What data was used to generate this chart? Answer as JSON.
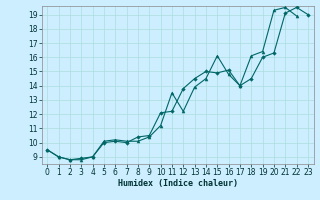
{
  "title": "",
  "xlabel": "Humidex (Indice chaleur)",
  "bg_color": "#cceeff",
  "grid_color": "#aadddd",
  "line_color1": "#006666",
  "line_color2": "#006666",
  "xlim": [
    -0.5,
    23.5
  ],
  "ylim": [
    8.5,
    19.6
  ],
  "xticks": [
    0,
    1,
    2,
    3,
    4,
    5,
    6,
    7,
    8,
    9,
    10,
    11,
    12,
    13,
    14,
    15,
    16,
    17,
    18,
    19,
    20,
    21,
    22,
    23
  ],
  "yticks": [
    9,
    10,
    11,
    12,
    13,
    14,
    15,
    16,
    17,
    18,
    19
  ],
  "series1_x": [
    0,
    1,
    2,
    3,
    4,
    5,
    6,
    7,
    8,
    9,
    10,
    11,
    12,
    13,
    14,
    15,
    16,
    17,
    18,
    19,
    20,
    21,
    22
  ],
  "series1_y": [
    9.5,
    9.0,
    8.8,
    8.8,
    9.0,
    10.1,
    10.2,
    10.1,
    10.1,
    10.4,
    11.2,
    13.5,
    12.2,
    13.9,
    14.5,
    16.1,
    14.8,
    14.0,
    16.1,
    16.4,
    19.3,
    19.5,
    18.9
  ],
  "series2_x": [
    0,
    1,
    2,
    3,
    4,
    5,
    6,
    7,
    8,
    9,
    10,
    11,
    12,
    13,
    14,
    15,
    16,
    17,
    18,
    19,
    20,
    21,
    22,
    23
  ],
  "series2_y": [
    9.5,
    9.0,
    8.8,
    8.9,
    9.0,
    10.0,
    10.1,
    10.0,
    10.4,
    10.5,
    12.1,
    12.2,
    13.8,
    14.5,
    15.0,
    14.9,
    15.1,
    14.0,
    14.5,
    16.0,
    16.3,
    19.1,
    19.5,
    19.0
  ],
  "xlabel_fontsize": 6,
  "tick_fontsize": 5.5,
  "lw": 0.8,
  "marker_size": 2.2
}
